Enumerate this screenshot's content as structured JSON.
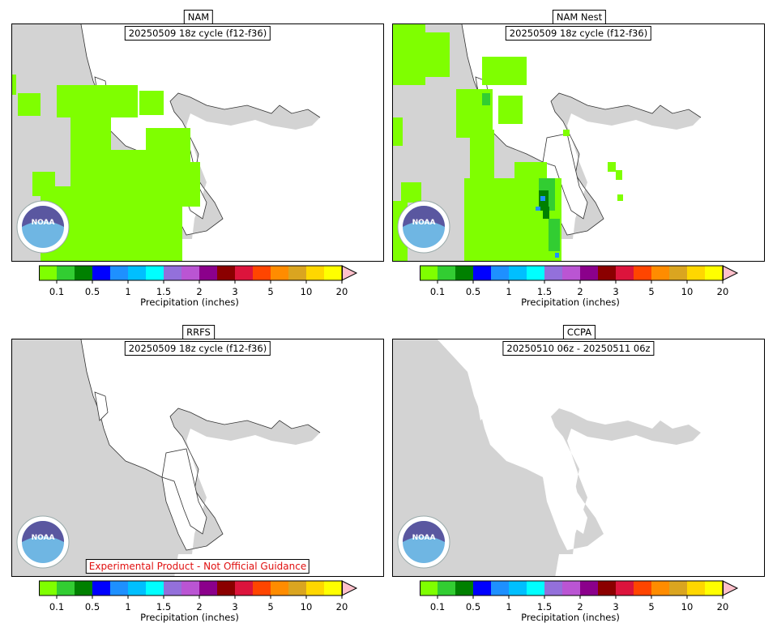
{
  "panels": [
    {
      "title": "NAM",
      "subtitle": "20250509 18z cycle (f12-f36)",
      "disclaimer": ""
    },
    {
      "title": "NAM Nest",
      "subtitle": "20250509 18z cycle (f12-f36)",
      "disclaimer": ""
    },
    {
      "title": "RRFS",
      "subtitle": "20250509 18z cycle (f12-f36)",
      "disclaimer": "Experimental Product - Not Official Guidance"
    },
    {
      "title": "CCPA",
      "subtitle": "20250510 06z - 20250511 06z",
      "disclaimer": ""
    }
  ],
  "colorbar": {
    "label": "Precipitation (inches)",
    "ticks": [
      "0.1",
      "0.5",
      "1",
      "1.5",
      "2",
      "3",
      "5",
      "10",
      "20"
    ],
    "colors": [
      "#7fff00",
      "#32cd32",
      "#008000",
      "#0000ff",
      "#1e90ff",
      "#00bfff",
      "#00ffff",
      "#9370db",
      "#ba55d3",
      "#8b008b",
      "#8b0000",
      "#dc143c",
      "#ff4500",
      "#ff8c00",
      "#daa520",
      "#ffd700",
      "#ffff00"
    ],
    "extend_color": "#ffc0cb"
  },
  "colors": {
    "land": "#d3d3d3",
    "water": "#ffffff",
    "precip_light": "#7fff00",
    "precip_mid": "#32cd32",
    "precip_heavy": "#008000",
    "precip_blue": "#1e90ff",
    "disclaimer_text": "#e01010"
  },
  "logo": {
    "text": "NOAA"
  }
}
